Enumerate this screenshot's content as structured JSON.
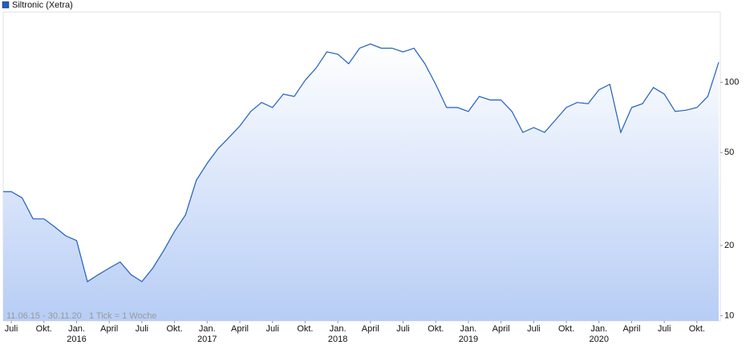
{
  "chart_data": {
    "type": "area",
    "title": "Siltronic (Xetra)",
    "footnote": "11.06.15 - 30.11.20   1 Tick = 1 Woche",
    "x": [
      "2015-06",
      "2015-07",
      "2015-08",
      "2015-09",
      "2015-10",
      "2015-11",
      "2015-12",
      "2016-01",
      "2016-02",
      "2016-03",
      "2016-04",
      "2016-05",
      "2016-06",
      "2016-07",
      "2016-08",
      "2016-09",
      "2016-10",
      "2016-11",
      "2016-12",
      "2017-01",
      "2017-02",
      "2017-03",
      "2017-04",
      "2017-05",
      "2017-06",
      "2017-07",
      "2017-08",
      "2017-09",
      "2017-10",
      "2017-11",
      "2017-12",
      "2018-01",
      "2018-02",
      "2018-03",
      "2018-04",
      "2018-05",
      "2018-06",
      "2018-07",
      "2018-08",
      "2018-09",
      "2018-10",
      "2018-11",
      "2018-12",
      "2019-01",
      "2019-02",
      "2019-03",
      "2019-04",
      "2019-05",
      "2019-06",
      "2019-07",
      "2019-08",
      "2019-09",
      "2019-10",
      "2019-11",
      "2019-12",
      "2020-01",
      "2020-02",
      "2020-03",
      "2020-04",
      "2020-05",
      "2020-06",
      "2020-07",
      "2020-08",
      "2020-09",
      "2020-10",
      "2020-11",
      "2020-12"
    ],
    "series": [
      {
        "name": "Siltronic (Xetra)",
        "color": "#1f5fbf",
        "values": [
          34,
          34,
          32,
          26,
          26,
          24,
          22,
          21,
          14,
          15,
          16,
          17,
          15,
          14,
          16,
          19,
          23,
          27,
          38,
          45,
          52,
          58,
          65,
          75,
          82,
          78,
          89,
          87,
          102,
          115,
          135,
          132,
          120,
          140,
          146,
          140,
          140,
          135,
          140,
          120,
          98,
          78,
          78,
          75,
          87,
          84,
          84,
          75,
          61,
          64,
          61,
          69,
          78,
          82,
          81,
          93,
          98,
          61,
          78,
          81,
          95,
          89,
          75,
          76,
          78,
          87,
          122
        ]
      }
    ],
    "xlim": [
      "2015-06",
      "2020-12"
    ],
    "xticks": [
      {
        "value": "2015-07",
        "label": "Juli"
      },
      {
        "value": "2015-10",
        "label": "Okt."
      },
      {
        "value": "2016-01",
        "label": "Jan."
      },
      {
        "value": "2016-04",
        "label": "April"
      },
      {
        "value": "2016-07",
        "label": "Juli"
      },
      {
        "value": "2016-10",
        "label": "Okt."
      },
      {
        "value": "2017-01",
        "label": "Jan."
      },
      {
        "value": "2017-04",
        "label": "April"
      },
      {
        "value": "2017-07",
        "label": "Juli"
      },
      {
        "value": "2017-10",
        "label": "Okt."
      },
      {
        "value": "2018-01",
        "label": "Jan."
      },
      {
        "value": "2018-04",
        "label": "April"
      },
      {
        "value": "2018-07",
        "label": "Juli"
      },
      {
        "value": "2018-10",
        "label": "Okt."
      },
      {
        "value": "2019-01",
        "label": "Jan."
      },
      {
        "value": "2019-04",
        "label": "April"
      },
      {
        "value": "2019-07",
        "label": "Juli"
      },
      {
        "value": "2019-10",
        "label": "Okt."
      },
      {
        "value": "2020-01",
        "label": "Jan."
      },
      {
        "value": "2020-04",
        "label": "April"
      },
      {
        "value": "2020-07",
        "label": "Juli"
      },
      {
        "value": "2020-10",
        "label": "Okt."
      }
    ],
    "xtick_years": [
      {
        "value": "2016-01",
        "label": "2016"
      },
      {
        "value": "2017-01",
        "label": "2017"
      },
      {
        "value": "2018-01",
        "label": "2018"
      },
      {
        "value": "2019-01",
        "label": "2019"
      },
      {
        "value": "2020-01",
        "label": "2020"
      }
    ],
    "ylim": [
      9.5,
      200
    ],
    "yticks": [
      10,
      20,
      50,
      100
    ],
    "log_scale": true,
    "grid": false
  }
}
